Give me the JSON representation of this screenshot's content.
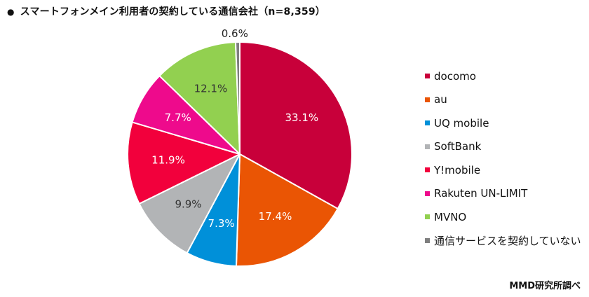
{
  "title": {
    "bullet": "●",
    "text": "スマートフォンメイン利用者の契約している通信会社（n=8,359）"
  },
  "source": "MMD研究所調べ",
  "chart_data": {
    "type": "pie",
    "title": "スマートフォンメイン利用者の契約している通信会社（n=8,359）",
    "unit": "%",
    "start": "12 o'clock, clockwise",
    "legend_position": "right",
    "slices": [
      {
        "label": "docomo",
        "value": 33.1,
        "value_label": "33.1%",
        "color": "#C8003A"
      },
      {
        "label": "au",
        "value": 17.4,
        "value_label": "17.4%",
        "color": "#EA5504"
      },
      {
        "label": "UQ mobile",
        "value": 7.3,
        "value_label": "7.3%",
        "color": "#0090D9"
      },
      {
        "label": "SoftBank",
        "value": 9.9,
        "value_label": "9.9%",
        "color": "#B2B4B6"
      },
      {
        "label": "Y!mobile",
        "value": 11.9,
        "value_label": "11.9%",
        "color": "#F2003C"
      },
      {
        "label": "Rakuten UN-LIMIT",
        "value": 7.7,
        "value_label": "7.7%",
        "color": "#EE0A8C"
      },
      {
        "label": "MVNO",
        "value": 12.1,
        "value_label": "12.1%",
        "color": "#92D050"
      },
      {
        "label": "通信サービスを契約していない",
        "value": 0.6,
        "value_label": "0.6%",
        "color": "#7F7F7F"
      }
    ]
  }
}
